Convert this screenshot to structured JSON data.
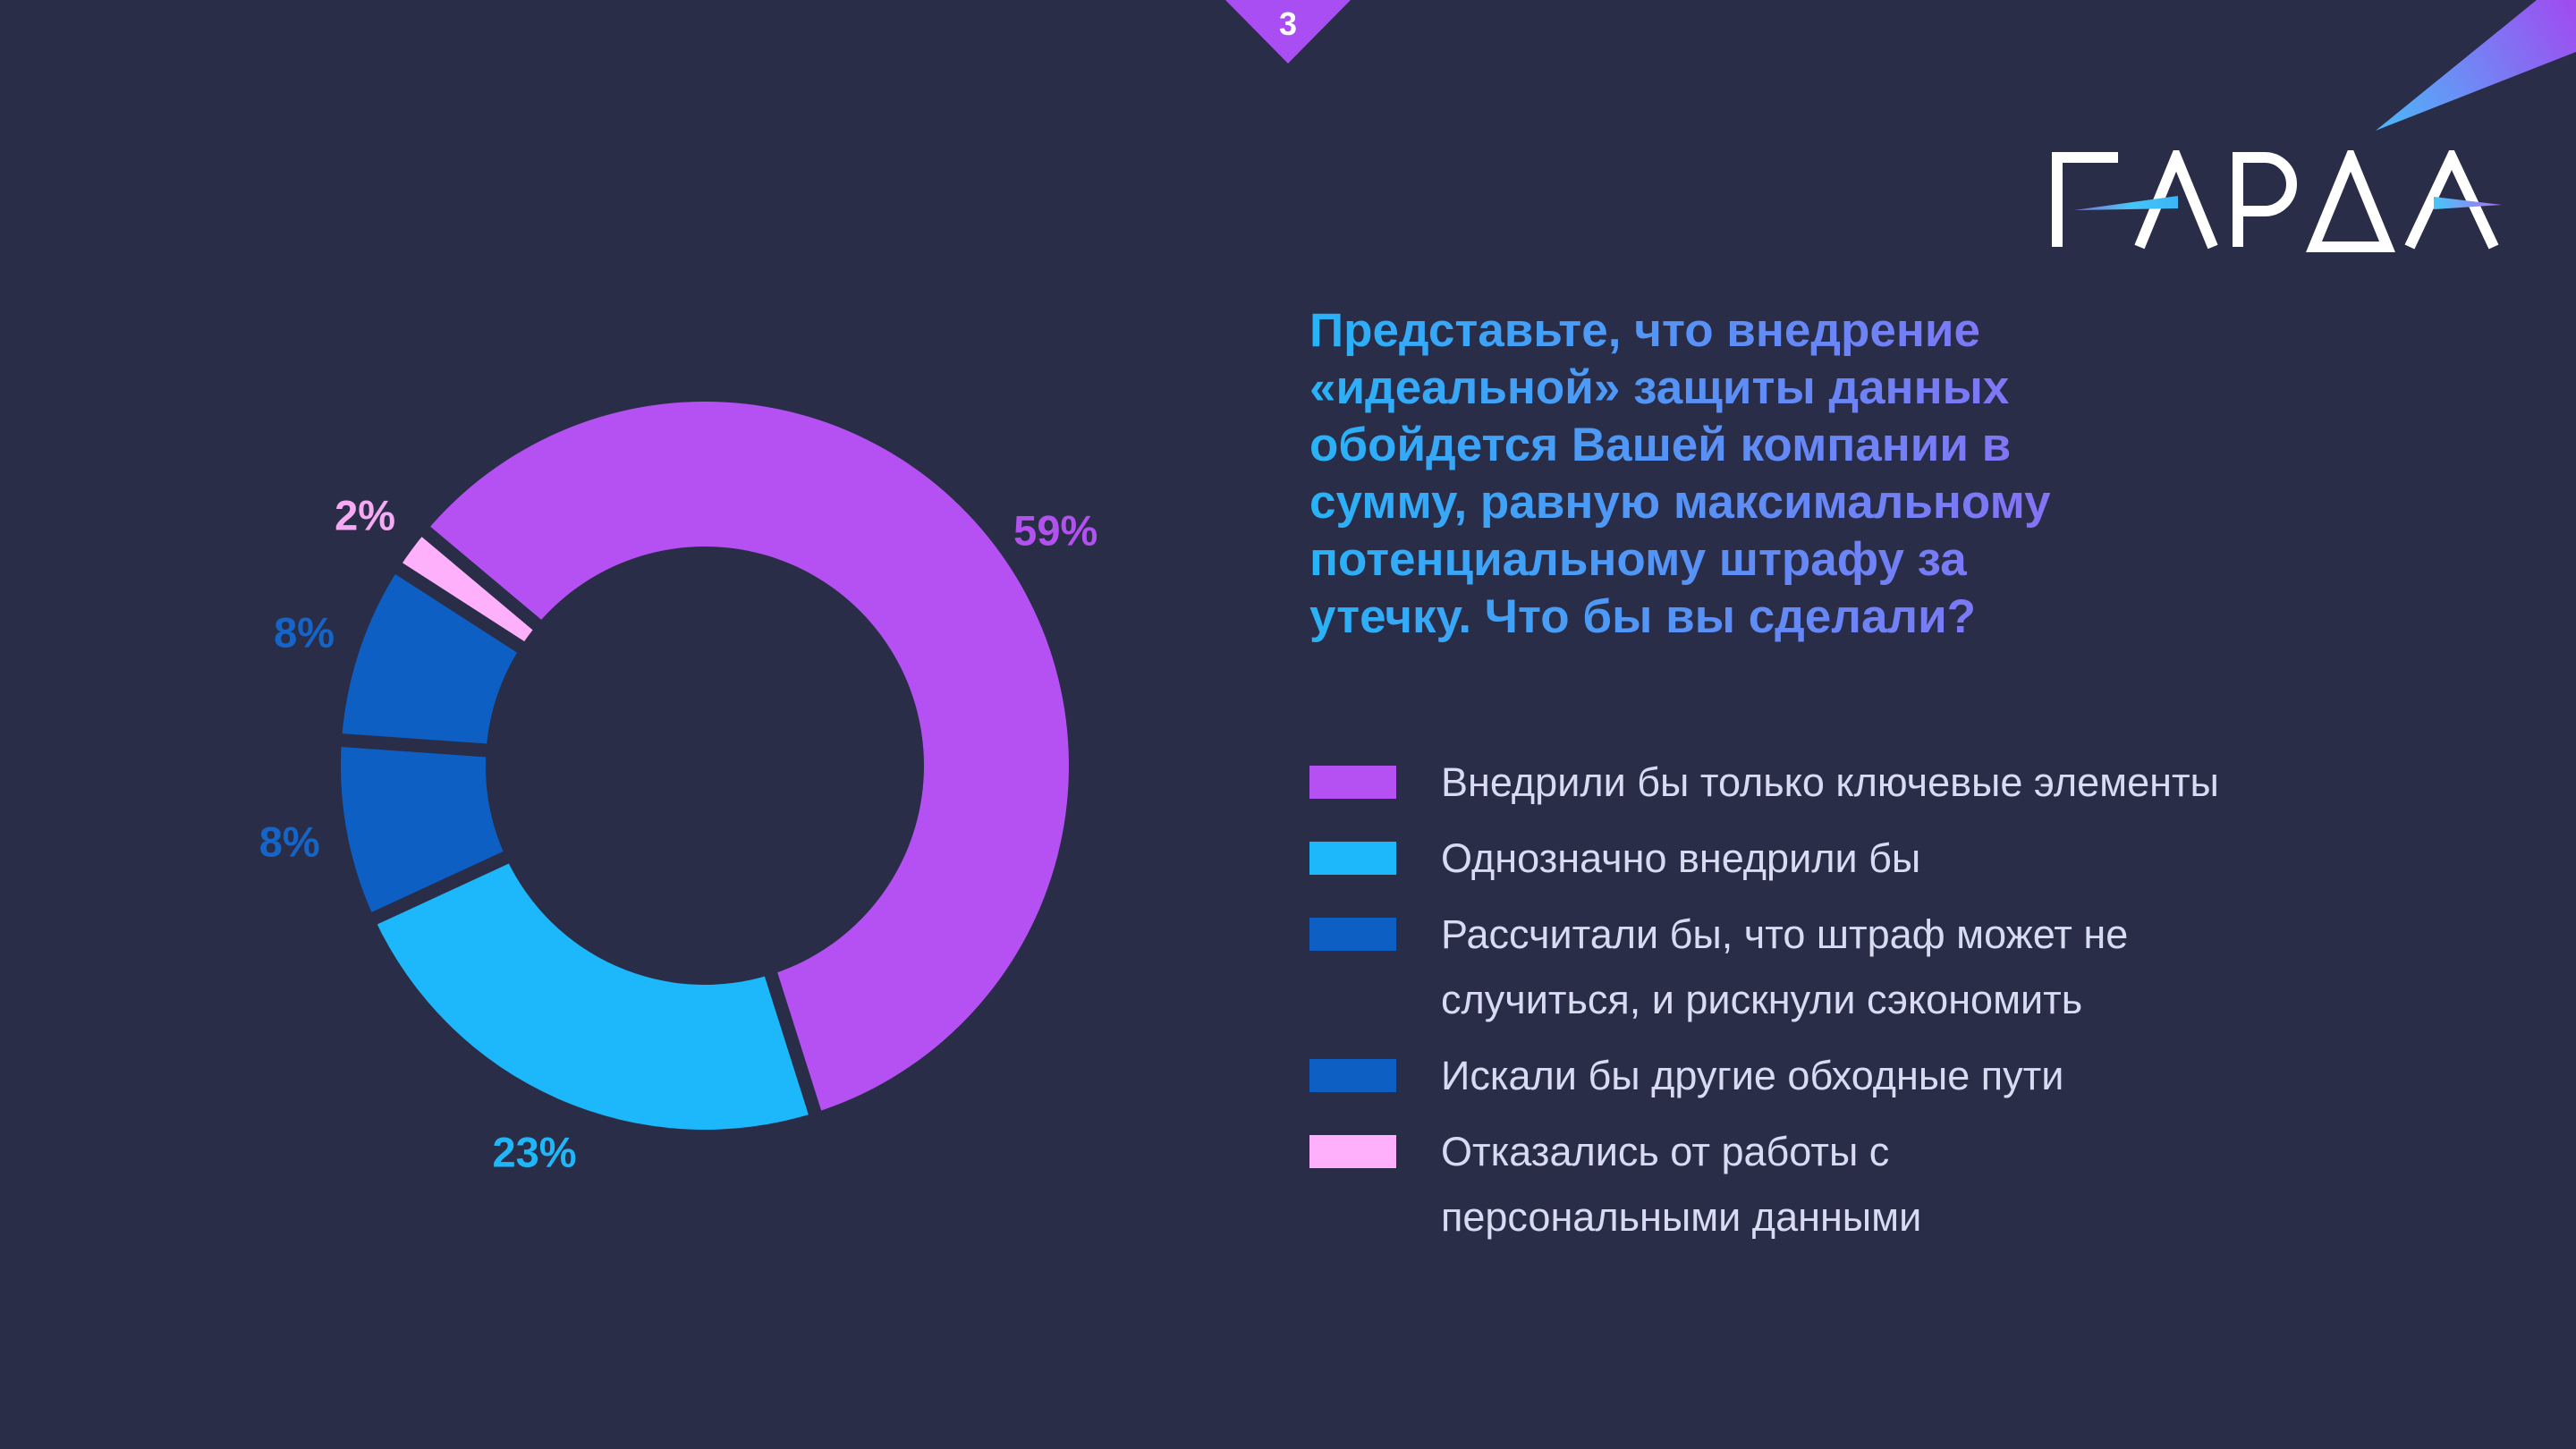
{
  "page": {
    "number": "3"
  },
  "logo": {
    "text": "ГАРДА"
  },
  "question": {
    "lines": [
      "Представьте, что внедрение",
      "«идеальной» защиты данных",
      "обойдется Вашей компании в",
      "сумму, равную максимальному",
      "потенциальному штрафу за",
      "утечку. Что бы вы сделали?"
    ]
  },
  "legend": {
    "items": [
      {
        "color": "#b551f3",
        "lines": [
          "Внедрили бы только ключевые элементы"
        ]
      },
      {
        "color": "#1db7fb",
        "lines": [
          "Однозначно внедрили бы"
        ]
      },
      {
        "color": "#0d5fc4",
        "lines": [
          "Рассчитали бы, что штраф может не",
          "случиться, и рискнули сэкономить"
        ]
      },
      {
        "color": "#0d5fc4",
        "lines": [
          "Искали бы другие обходные пути"
        ]
      },
      {
        "color": "#feb1fa",
        "lines": [
          "Отказались от работы с",
          "персональными данными"
        ]
      }
    ]
  },
  "chart_data": {
    "type": "pie",
    "variant": "donut",
    "title": "",
    "categories": [
      "Внедрили бы только ключевые элементы",
      "Однозначно внедрили бы",
      "Рассчитали бы, что штраф может не случиться, и рискнули сэкономить",
      "Искали бы другие обходные пути",
      "Отказались от работы с персональными данными"
    ],
    "values": [
      59,
      23,
      8,
      8,
      2
    ],
    "labels": [
      "59%",
      "23%",
      "8%",
      "8%",
      "2%"
    ],
    "colors": [
      "#b551f3",
      "#1db7fb",
      "#0d5fc4",
      "#0d5fc4",
      "#feb1fa"
    ],
    "label_colors": [
      "#b251f0",
      "#1fb7f8",
      "#1565c9",
      "#1565c9",
      "#f6aaf3"
    ],
    "start_angle_deg": -50,
    "direction": "clockwise",
    "legend_position": "right"
  },
  "colors": {
    "background": "#2a2d48",
    "badge": "#a84ef2",
    "legend_text": "#d8dcf2",
    "title_gradient": [
      "#27b3f8",
      "#a95af4"
    ],
    "spike_gradient": [
      "#4ab9f8",
      "#9f4cf0"
    ],
    "logo": "#ffffff"
  }
}
